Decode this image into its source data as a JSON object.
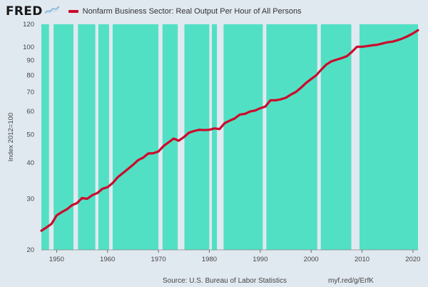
{
  "header": {
    "logo": "FRED",
    "legend_label": "Nonfarm Business Sector: Real Output Per Hour of All Persons",
    "series_color": "#cc0a2c"
  },
  "footer": {
    "source": "Source: U.S. Bureau of Labor Statistics",
    "url": "myf.red/g/ErfK"
  },
  "chart_data": {
    "type": "line",
    "title": "",
    "ylabel": "Index 2012=100",
    "xlabel": "",
    "y_scale": "log",
    "ylim": [
      20,
      120
    ],
    "xlim": [
      1947,
      2021
    ],
    "y_ticks": [
      20,
      30,
      40,
      50,
      60,
      70,
      80,
      90,
      100,
      120
    ],
    "x_ticks": [
      1950,
      1960,
      1970,
      1980,
      1990,
      2000,
      2010,
      2020
    ],
    "grid": false,
    "background_fill": "#52e0c4",
    "gap_color": "#e1e9f0",
    "gap_intervals": [
      [
        1948.5,
        1949.4
      ],
      [
        1953.3,
        1954.2
      ],
      [
        1957.6,
        1958.2
      ],
      [
        1960.3,
        1961.0
      ],
      [
        1970.0,
        1970.8
      ],
      [
        1973.8,
        1975.1
      ],
      [
        1980.0,
        1980.5
      ],
      [
        1981.5,
        1982.8
      ],
      [
        1990.5,
        1991.2
      ],
      [
        2001.2,
        2001.9
      ],
      [
        2007.9,
        2009.5
      ]
    ],
    "series": [
      {
        "name": "Nonfarm Business Sector: Real Output Per Hour of All Persons",
        "color": "#cc0a2c",
        "x": [
          1947,
          1948,
          1949,
          1950,
          1951,
          1952,
          1953,
          1954,
          1955,
          1956,
          1957,
          1958,
          1959,
          1960,
          1961,
          1962,
          1963,
          1964,
          1965,
          1966,
          1967,
          1968,
          1969,
          1970,
          1971,
          1972,
          1973,
          1974,
          1975,
          1976,
          1977,
          1978,
          1979,
          1980,
          1981,
          1982,
          1983,
          1984,
          1985,
          1986,
          1987,
          1988,
          1989,
          1990,
          1991,
          1992,
          1993,
          1994,
          1995,
          1996,
          1997,
          1998,
          1999,
          2000,
          2001,
          2002,
          2003,
          2004,
          2005,
          2006,
          2007,
          2008,
          2009,
          2010,
          2011,
          2012,
          2013,
          2014,
          2015,
          2016,
          2017,
          2018,
          2019,
          2020,
          2021
        ],
        "values": [
          23.3,
          23.9,
          24.6,
          26.3,
          27.0,
          27.6,
          28.5,
          29.0,
          30.2,
          30.0,
          30.9,
          31.4,
          32.5,
          32.9,
          34.0,
          35.6,
          36.8,
          38.0,
          39.3,
          40.8,
          41.6,
          43.0,
          43.1,
          43.7,
          45.6,
          47.0,
          48.4,
          47.6,
          49.0,
          50.7,
          51.4,
          51.9,
          51.8,
          51.9,
          52.5,
          52.2,
          54.7,
          55.8,
          56.8,
          58.6,
          58.9,
          60.0,
          60.5,
          61.6,
          62.4,
          65.6,
          65.6,
          66.1,
          66.9,
          68.6,
          70.1,
          72.5,
          75.3,
          77.7,
          80.0,
          83.7,
          87.2,
          89.4,
          90.6,
          91.7,
          93.1,
          96.3,
          100.4,
          100.4,
          100.9,
          101.5,
          102.0,
          103.0,
          104.0,
          104.5,
          105.8,
          107.3,
          109.2,
          111.6,
          114.5
        ]
      }
    ]
  }
}
